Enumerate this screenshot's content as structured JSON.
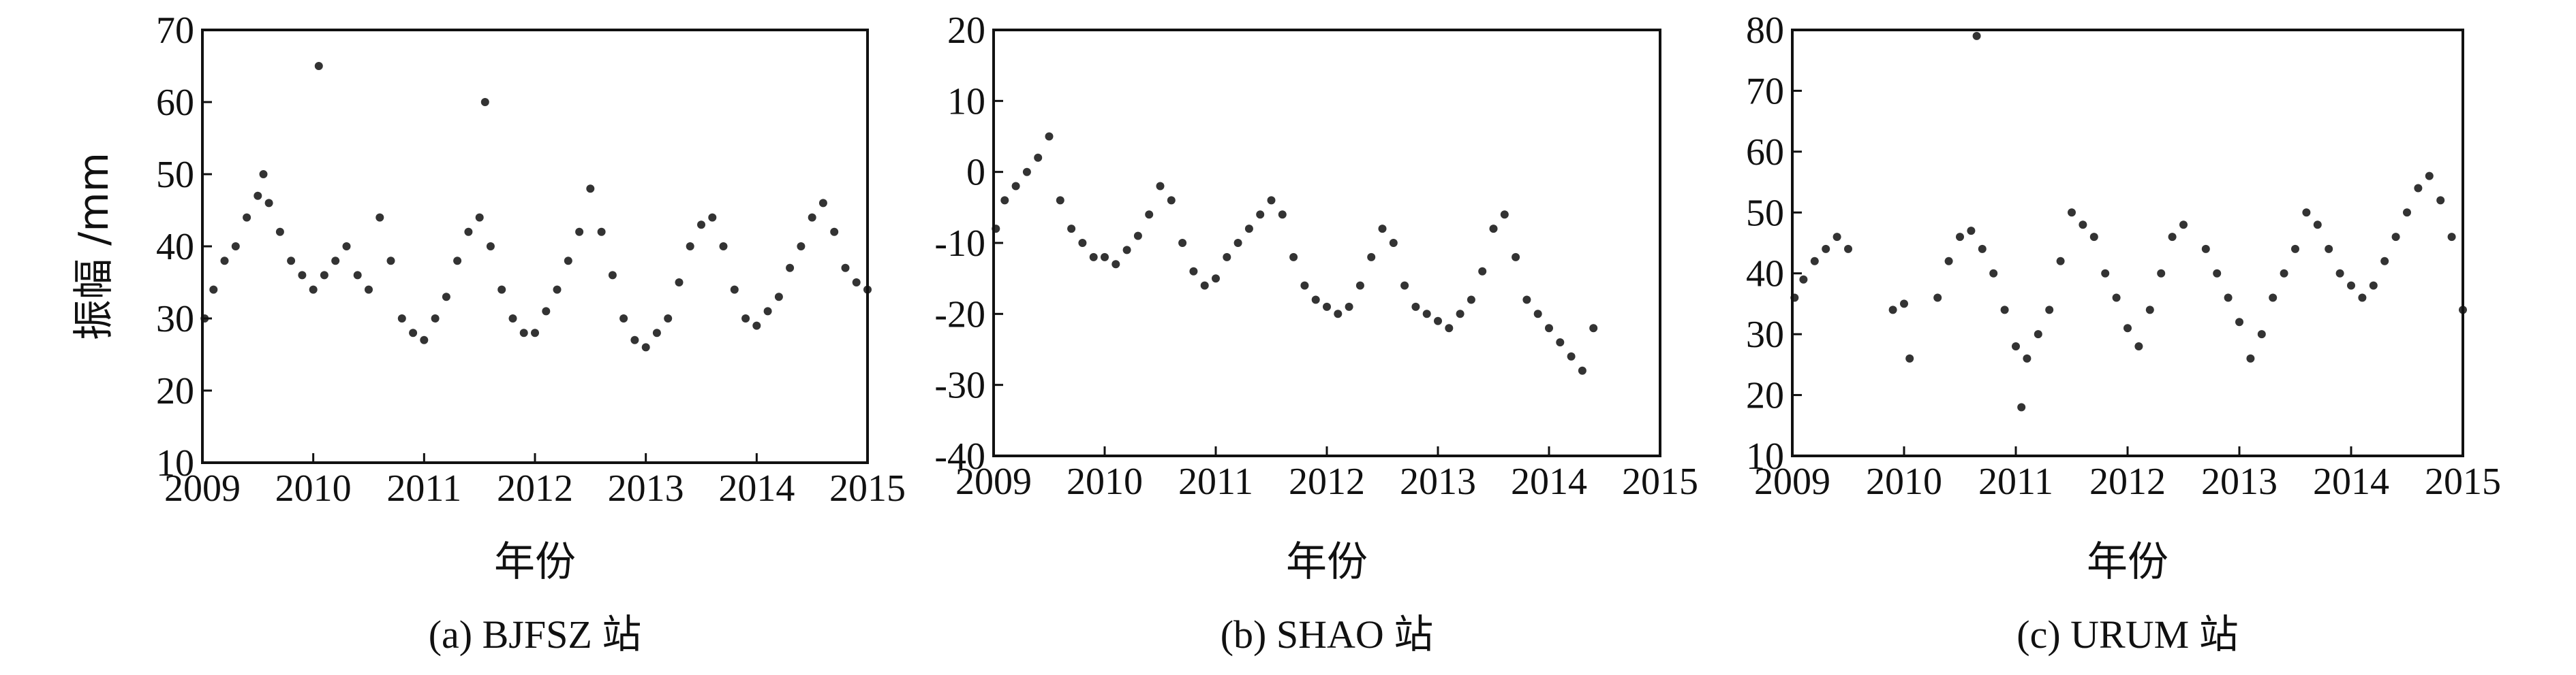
{
  "figure": {
    "panels": [
      {
        "id": "a",
        "caption": "(a) BJFSZ 站",
        "xlabel": "年份",
        "ylabel": "振幅 /mm",
        "xlim": [
          2009,
          2015
        ],
        "ylim": [
          10,
          70
        ],
        "xticks": [
          "2009",
          "2010",
          "2011",
          "2012",
          "2013",
          "2014",
          "2015"
        ],
        "yticks": [
          "10",
          "20",
          "30",
          "40",
          "50",
          "60",
          "70"
        ]
      },
      {
        "id": "b",
        "caption": "(b) SHAO 站",
        "xlabel": "年份",
        "ylabel": "",
        "xlim": [
          2009,
          2015
        ],
        "ylim": [
          -40,
          20
        ],
        "xticks": [
          "2009",
          "2010",
          "2011",
          "2012",
          "2013",
          "2014",
          "2015"
        ],
        "yticks": [
          "-40",
          "-30",
          "-20",
          "-10",
          "0",
          "10",
          "20"
        ]
      },
      {
        "id": "c",
        "caption": "(c) URUM 站",
        "xlabel": "年份",
        "ylabel": "",
        "xlim": [
          2009,
          2015
        ],
        "ylim": [
          10,
          80
        ],
        "xticks": [
          "2009",
          "2010",
          "2011",
          "2012",
          "2013",
          "2014",
          "2015"
        ],
        "yticks": [
          "10",
          "20",
          "30",
          "40",
          "50",
          "60",
          "70",
          "80"
        ]
      }
    ]
  },
  "chart_data": [
    {
      "type": "scatter",
      "title": "(a) BJFSZ 站",
      "xlabel": "年份",
      "ylabel": "振幅 /mm",
      "xlim": [
        2009,
        2015
      ],
      "ylim": [
        10,
        70
      ],
      "grid": false,
      "color": "#333333",
      "x": [
        2009.02,
        2009.1,
        2009.2,
        2009.3,
        2009.4,
        2009.5,
        2009.55,
        2009.6,
        2009.7,
        2009.8,
        2009.9,
        2010.0,
        2010.05,
        2010.1,
        2010.2,
        2010.3,
        2010.4,
        2010.5,
        2010.6,
        2010.7,
        2010.8,
        2010.9,
        2011.0,
        2011.1,
        2011.2,
        2011.3,
        2011.4,
        2011.5,
        2011.55,
        2011.6,
        2011.7,
        2011.8,
        2011.9,
        2012.0,
        2012.1,
        2012.2,
        2012.3,
        2012.4,
        2012.5,
        2012.6,
        2012.7,
        2012.8,
        2012.9,
        2013.0,
        2013.1,
        2013.2,
        2013.3,
        2013.4,
        2013.5,
        2013.6,
        2013.7,
        2013.8,
        2013.9,
        2014.0,
        2014.1,
        2014.2,
        2014.3,
        2014.4,
        2014.5,
        2014.6,
        2014.7,
        2014.8,
        2014.9,
        2015.0
      ],
      "y": [
        30,
        34,
        38,
        40,
        44,
        47,
        50,
        46,
        42,
        38,
        36,
        34,
        65,
        36,
        38,
        40,
        36,
        34,
        44,
        38,
        30,
        28,
        27,
        30,
        33,
        38,
        42,
        44,
        60,
        40,
        34,
        30,
        28,
        28,
        31,
        34,
        38,
        42,
        48,
        42,
        36,
        30,
        27,
        26,
        28,
        30,
        35,
        40,
        43,
        44,
        40,
        34,
        30,
        29,
        31,
        33,
        37,
        40,
        44,
        46,
        42,
        37,
        35,
        34
      ]
    },
    {
      "type": "scatter",
      "title": "(b) SHAO 站",
      "xlabel": "年份",
      "ylabel": "",
      "xlim": [
        2009,
        2015
      ],
      "ylim": [
        -40,
        20
      ],
      "grid": false,
      "color": "#333333",
      "x": [
        2009.02,
        2009.1,
        2009.2,
        2009.3,
        2009.4,
        2009.5,
        2009.6,
        2009.7,
        2009.8,
        2009.9,
        2010.0,
        2010.1,
        2010.2,
        2010.3,
        2010.4,
        2010.5,
        2010.6,
        2010.7,
        2010.8,
        2010.9,
        2011.0,
        2011.1,
        2011.2,
        2011.3,
        2011.4,
        2011.5,
        2011.6,
        2011.7,
        2011.8,
        2011.9,
        2012.0,
        2012.1,
        2012.2,
        2012.3,
        2012.4,
        2012.5,
        2012.6,
        2012.7,
        2012.8,
        2012.9,
        2013.0,
        2013.1,
        2013.2,
        2013.3,
        2013.4,
        2013.5,
        2013.6,
        2013.7,
        2013.8,
        2013.9,
        2014.0,
        2014.1,
        2014.2,
        2014.3,
        2014.4
      ],
      "y": [
        -8,
        -4,
        -2,
        0,
        2,
        5,
        -4,
        -8,
        -10,
        -12,
        -12,
        -13,
        -11,
        -9,
        -6,
        -2,
        -4,
        -10,
        -14,
        -16,
        -15,
        -12,
        -10,
        -8,
        -6,
        -4,
        -6,
        -12,
        -16,
        -18,
        -19,
        -20,
        -19,
        -16,
        -12,
        -8,
        -10,
        -16,
        -19,
        -20,
        -21,
        -22,
        -20,
        -18,
        -14,
        -8,
        -6,
        -12,
        -18,
        -20,
        -22,
        -24,
        -26,
        -28,
        -22
      ]
    },
    {
      "type": "scatter",
      "title": "(c) URUM 站",
      "xlabel": "年份",
      "ylabel": "",
      "xlim": [
        2009,
        2015
      ],
      "ylim": [
        10,
        80
      ],
      "grid": false,
      "color": "#333333",
      "x": [
        2009.02,
        2009.1,
        2009.2,
        2009.3,
        2009.4,
        2009.5,
        2009.9,
        2010.0,
        2010.05,
        2010.3,
        2010.4,
        2010.5,
        2010.6,
        2010.65,
        2010.7,
        2010.8,
        2010.9,
        2011.0,
        2011.05,
        2011.1,
        2011.2,
        2011.3,
        2011.4,
        2011.5,
        2011.6,
        2011.7,
        2011.8,
        2011.9,
        2012.0,
        2012.1,
        2012.2,
        2012.3,
        2012.4,
        2012.5,
        2012.7,
        2012.8,
        2012.9,
        2013.0,
        2013.1,
        2013.2,
        2013.3,
        2013.4,
        2013.5,
        2013.6,
        2013.7,
        2013.8,
        2013.9,
        2014.0,
        2014.1,
        2014.2,
        2014.3,
        2014.4,
        2014.5,
        2014.6,
        2014.7,
        2014.8,
        2014.9,
        2015.0
      ],
      "y": [
        36,
        39,
        42,
        44,
        46,
        44,
        34,
        35,
        26,
        36,
        42,
        46,
        47,
        79,
        44,
        40,
        34,
        28,
        18,
        26,
        30,
        34,
        42,
        50,
        48,
        46,
        40,
        36,
        31,
        28,
        34,
        40,
        46,
        48,
        44,
        40,
        36,
        32,
        26,
        30,
        36,
        40,
        44,
        50,
        48,
        44,
        40,
        38,
        36,
        38,
        42,
        46,
        50,
        54,
        56,
        52,
        46,
        34
      ]
    }
  ]
}
